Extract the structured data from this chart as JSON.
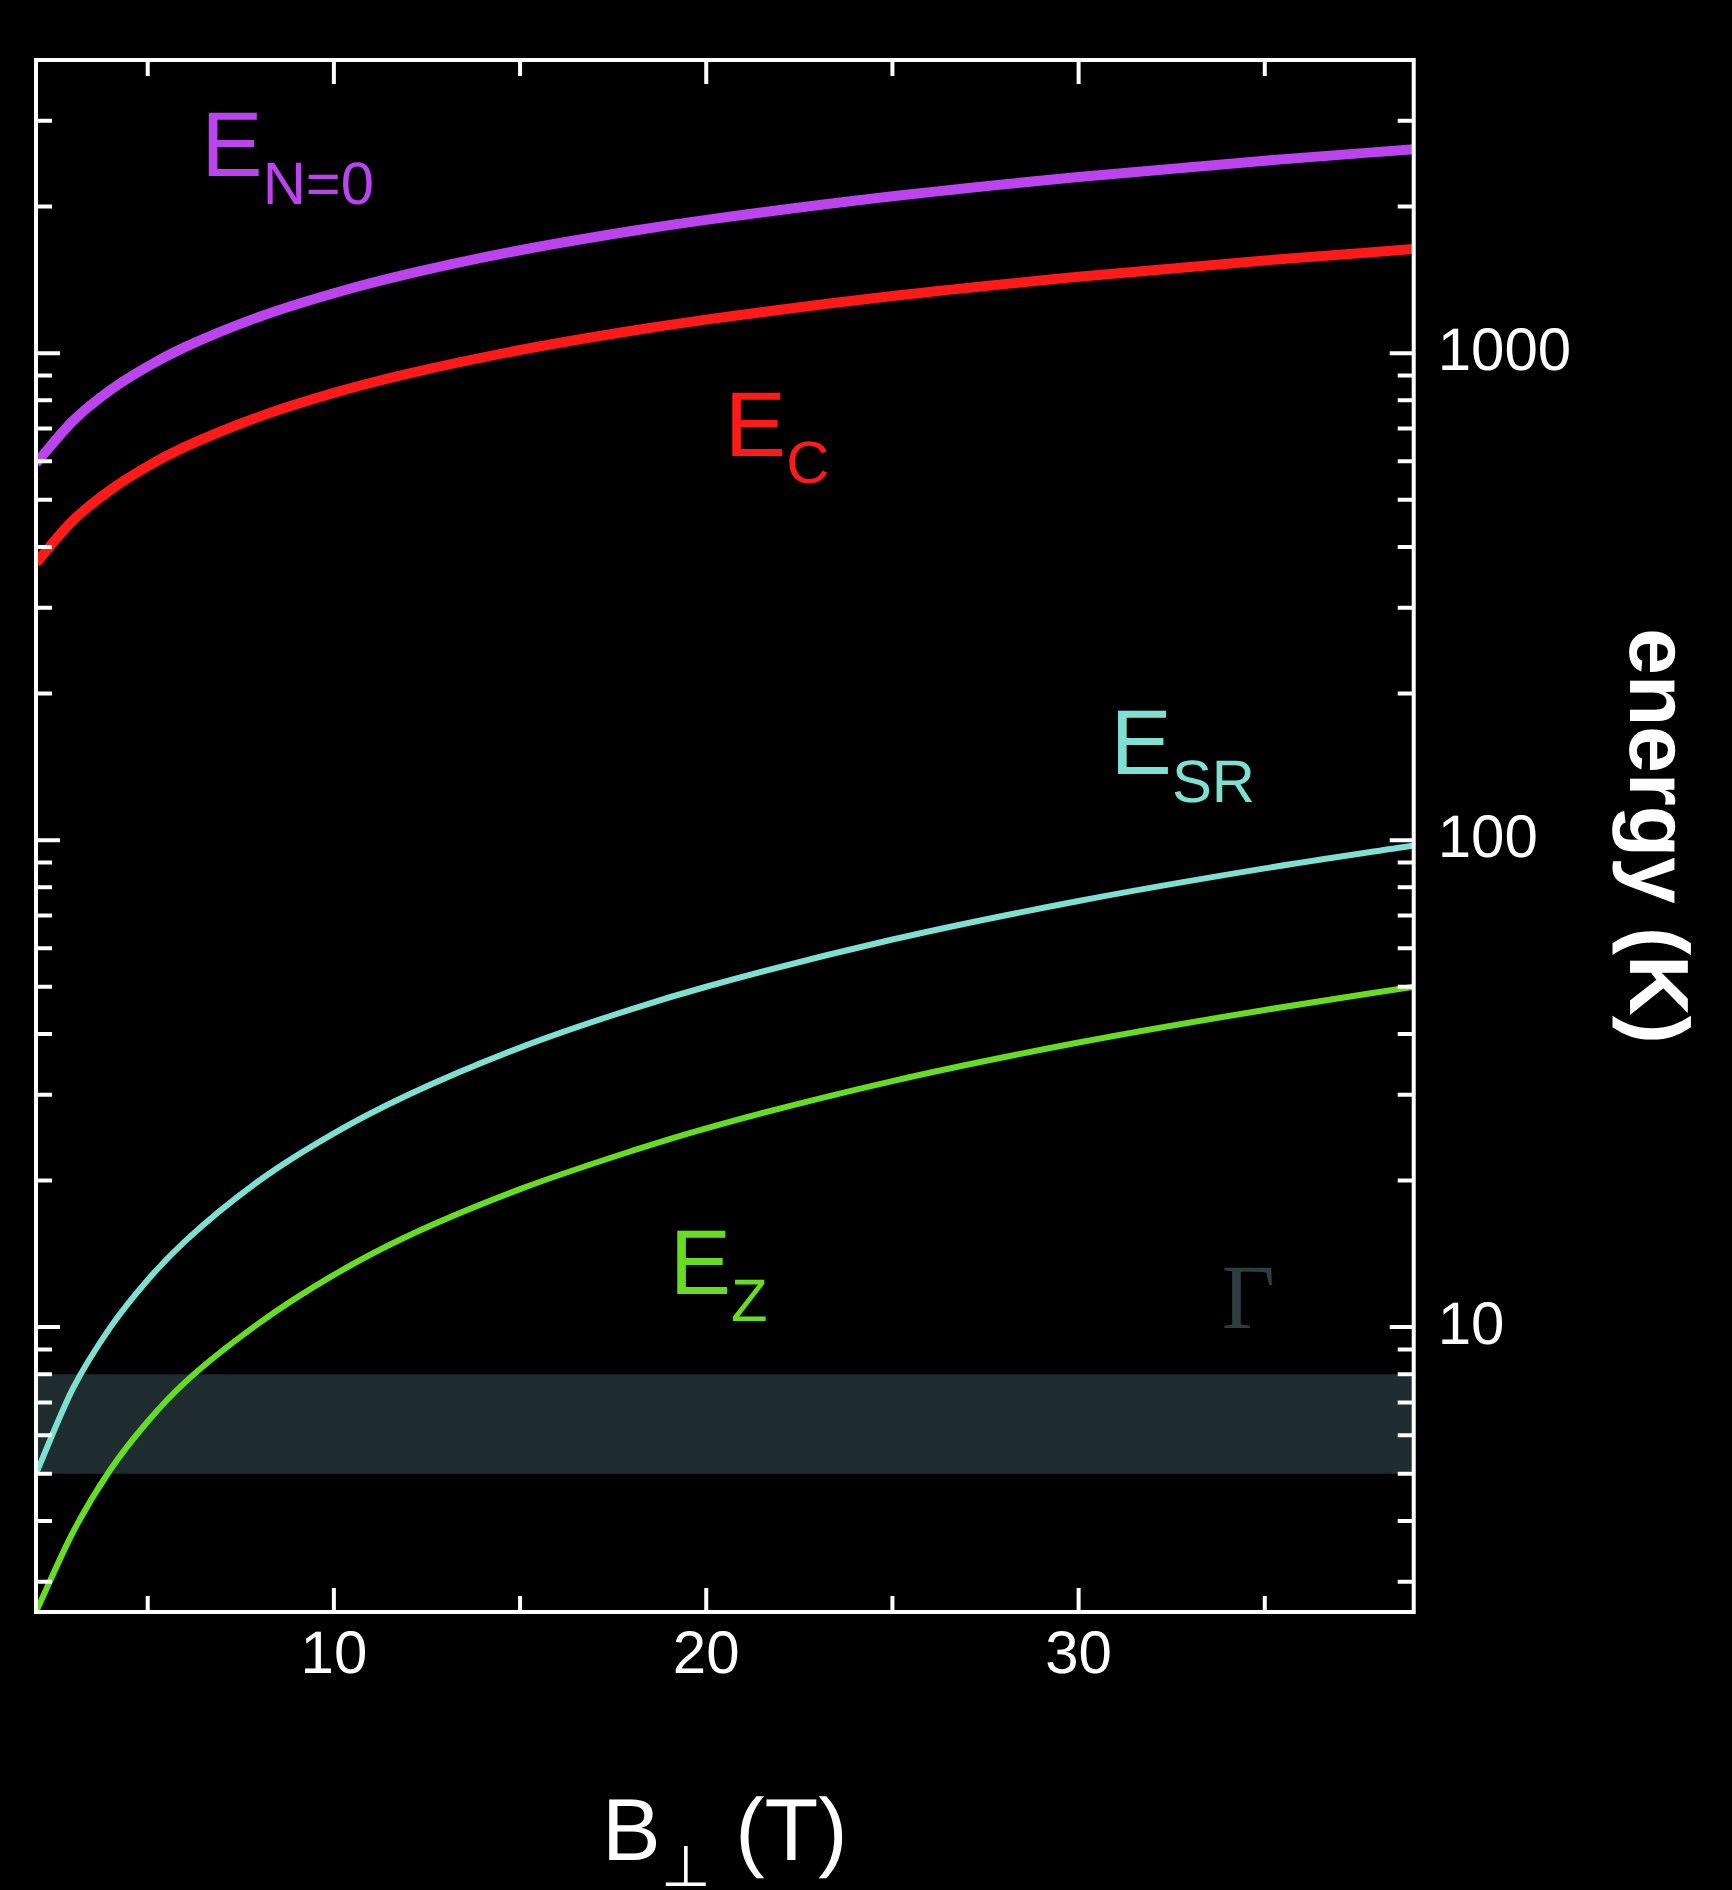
{
  "chart_data": {
    "type": "line",
    "xlabel": "B$_{⊥}$ (T)",
    "ylabel": "energy (K)",
    "log": "y",
    "grid": false,
    "legend": false,
    "marker": "none",
    "line_style": "solid",
    "x": [
      2,
      3,
      4,
      5,
      6,
      8,
      10,
      12,
      15,
      18,
      20,
      25,
      30,
      35,
      39
    ],
    "xlim": [
      2,
      39
    ],
    "xticks": [
      {
        "value": 5,
        "label": null
      },
      10,
      {
        "value": 15,
        "label": null
      },
      20,
      {
        "value": 25,
        "label": null
      },
      30,
      {
        "value": 35,
        "label": null
      }
    ],
    "ylim": [
      2.6,
      4000
    ],
    "yticks": [
      {
        "value": 3,
        "label": null
      },
      {
        "value": 4,
        "label": null
      },
      {
        "value": 5,
        "label": null
      },
      {
        "value": 6,
        "label": null
      },
      {
        "value": 7,
        "label": null
      },
      {
        "value": 8,
        "label": null
      },
      {
        "value": 9,
        "label": null
      },
      10,
      {
        "value": 20,
        "label": null
      },
      {
        "value": 30,
        "label": null
      },
      {
        "value": 40,
        "label": null
      },
      {
        "value": 50,
        "label": null
      },
      {
        "value": 60,
        "label": null
      },
      {
        "value": 70,
        "label": null
      },
      {
        "value": 80,
        "label": null
      },
      {
        "value": 90,
        "label": null
      },
      100,
      {
        "value": 200,
        "label": null
      },
      {
        "value": 300,
        "label": null
      },
      {
        "value": 400,
        "label": null
      },
      {
        "value": 500,
        "label": null
      },
      {
        "value": 600,
        "label": null
      },
      {
        "value": 700,
        "label": null
      },
      {
        "value": 800,
        "label": null
      },
      {
        "value": 900,
        "label": null
      },
      1000,
      {
        "value": 2000,
        "label": null
      },
      {
        "value": 3000,
        "label": null
      }
    ],
    "series": [
      {
        "name": "E$_{N=0}$",
        "color": "#bb44ee",
        "values": [
          594,
          727,
          840,
          939,
          1029,
          1188,
          1328,
          1455,
          1627,
          1782,
          1878,
          2100,
          2300,
          2485,
          2623
        ]
      },
      {
        "name": "E$_{C}$",
        "color": "#ff1a1a",
        "values": [
          371,
          454,
          524,
          586,
          642,
          741,
          829,
          908,
          1015,
          1112,
          1172,
          1310,
          1435,
          1550,
          1636
        ]
      },
      {
        "name": "E$_{SR}$",
        "color": "#7de0d0",
        "values": [
          5,
          7.5,
          10,
          12.5,
          15,
          20,
          25,
          30,
          37.5,
          45,
          50,
          62.5,
          75,
          87.5,
          97.5
        ]
      },
      {
        "name": "E$_{Z}$",
        "color": "#66dd22",
        "values": [
          2.6,
          3.8,
          5.1,
          6.4,
          7.7,
          10.2,
          12.8,
          15.4,
          19.2,
          23,
          25.6,
          32,
          38.4,
          44.8,
          50
        ]
      }
    ],
    "bands": [
      {
        "axis": "y",
        "from": 5,
        "to": 8,
        "label": "Γ",
        "color": "#1f2d31"
      }
    ]
  }
}
